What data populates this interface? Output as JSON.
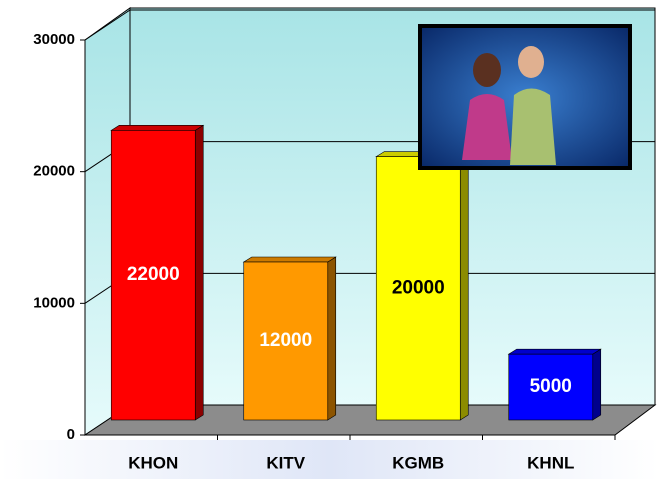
{
  "chart_data": {
    "type": "bar3d",
    "categories": [
      "KHON",
      "KITV",
      "KGMB",
      "KHNL"
    ],
    "values": [
      22000,
      12000,
      20000,
      5000
    ],
    "colors": [
      "#ff0000",
      "#ff9900",
      "#ffff00",
      "#0000ff"
    ],
    "ylim": [
      0,
      30000
    ],
    "yticks": [
      0,
      10000,
      20000,
      30000
    ],
    "grid": true
  }
}
